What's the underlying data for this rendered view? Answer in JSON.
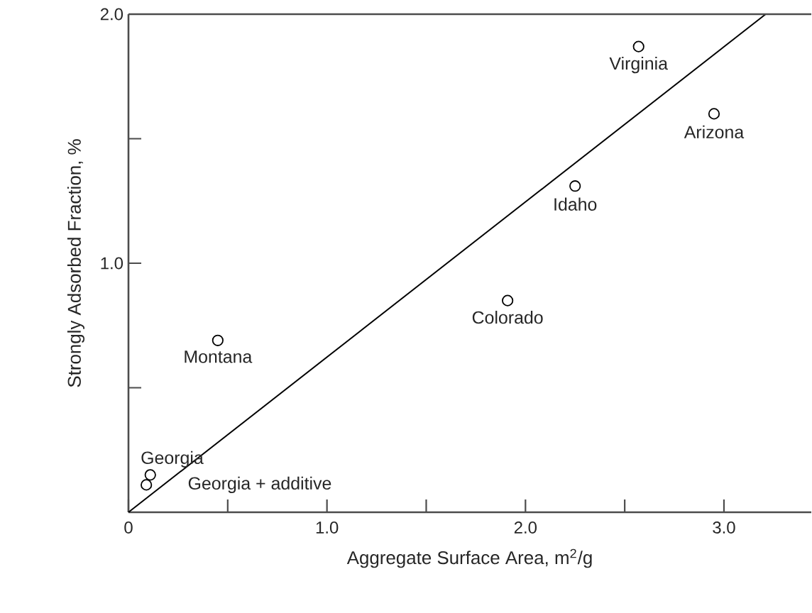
{
  "chart_data": {
    "type": "scatter",
    "xlabel": "Aggregate Surface Area, m$^{2}$/g",
    "ylabel": "Strongly Adsorbed Fraction, %",
    "xlim": [
      0,
      3.44
    ],
    "ylim": [
      0,
      2.0
    ],
    "xticks": [
      0,
      {
        "value": 0.5,
        "label": null
      },
      {
        "value": 1,
        "label": "1.0"
      },
      {
        "value": 1.5,
        "label": null
      },
      {
        "value": 2,
        "label": "2.0"
      },
      {
        "value": 2.5,
        "label": null
      },
      {
        "value": 3,
        "label": "3.0"
      }
    ],
    "yticks": [
      {
        "value": 0.5,
        "label": null
      },
      {
        "value": 1,
        "label": "1.0"
      },
      {
        "value": 1.5,
        "label": null
      },
      {
        "value": 2,
        "label": "2.0"
      }
    ],
    "series": [
      {
        "marker": "circle",
        "color": "#000000",
        "x": [
          2.57,
          2.95,
          2.25,
          1.91,
          0.45,
          0.11,
          0.09
        ],
        "values": [
          1.87,
          1.6,
          1.31,
          0.85,
          0.69,
          0.15,
          0.11
        ]
      },
      {
        "type": "line",
        "marker": "none",
        "color": "#000000",
        "x": [
          0,
          3.21
        ],
        "values": [
          0,
          2.0
        ]
      }
    ],
    "annotations": [
      {
        "text": "Virginia",
        "x": 2.57,
        "y": 1.87
      },
      {
        "text": "Arizona",
        "x": 2.95,
        "y": 1.6
      },
      {
        "text": "Idaho",
        "x": 2.25,
        "y": 1.31
      },
      {
        "text": "Colorado",
        "x": 1.91,
        "y": 0.85
      },
      {
        "text": "Montana",
        "x": 0.45,
        "y": 0.69
      },
      {
        "text": "Georgia",
        "x": 0.11,
        "y": 0.15
      },
      {
        "text": "Georgia + additive",
        "x": 0.09,
        "y": 0.11
      }
    ]
  }
}
